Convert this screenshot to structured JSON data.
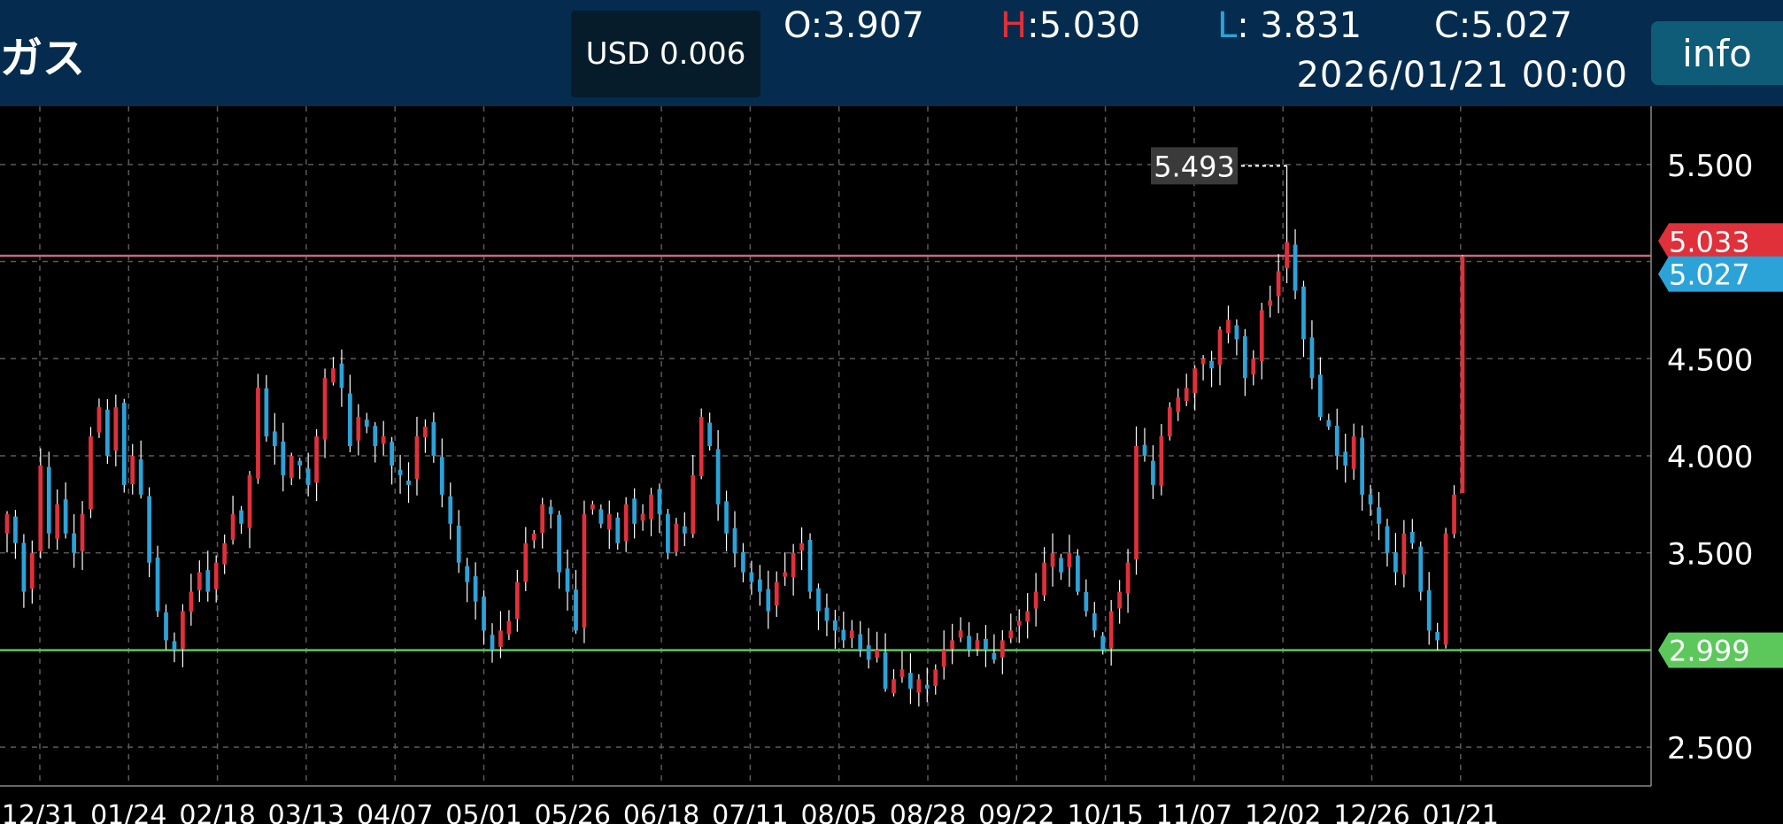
{
  "header": {
    "title": "ガス",
    "price_box": "USD 0.006",
    "ohlc": {
      "o_key": "O:",
      "o_val": "3.907",
      "h_key": "H",
      "h_colon": ":",
      "h_val": "5.030",
      "l_key": "L",
      "l_colon": ":",
      "l_val": "3.831",
      "c_key": "C:",
      "c_val": "5.027"
    },
    "datetime": "2026/01/21  00:00",
    "info_label": "info"
  },
  "colors": {
    "up": "#e0303a",
    "down": "#2ba3d9",
    "header_bg": "#052c4e",
    "info_bg": "#0f5c78",
    "h_key": "#e0303a",
    "l_key": "#2ba3d9",
    "support_line": "#5cc85c",
    "resistance_line": "#c36a80"
  },
  "chart_data": {
    "type": "candlestick",
    "ylim": [
      2.3,
      5.8
    ],
    "yticks": [
      "5.500",
      "4.500",
      "4.000",
      "3.500",
      "2.500"
    ],
    "xtick_labels": [
      "12/31",
      "01/24",
      "02/18",
      "03/13",
      "04/07",
      "05/01",
      "05/26",
      "06/18",
      "07/11",
      "08/05",
      "08/28",
      "09/22",
      "10/15",
      "11/07",
      "12/02",
      "12/26",
      "01/21"
    ],
    "max_marker": {
      "label": "5.493",
      "value": 5.493
    },
    "price_tags": [
      {
        "label": "5.033",
        "value": 5.033,
        "color": "#e0303a"
      },
      {
        "label": "5.027",
        "value": 5.027,
        "color": "#2ba3d9"
      },
      {
        "label": "2.999",
        "value": 2.999,
        "color": "#5cc85c"
      }
    ],
    "horizontal_lines": [
      {
        "value": 5.03,
        "color": "#c36a80"
      },
      {
        "value": 2.999,
        "color": "#5cc85c"
      }
    ],
    "closes": [
      3.7,
      3.55,
      3.3,
      3.5,
      3.95,
      3.6,
      3.75,
      3.6,
      3.5,
      3.7,
      4.1,
      4.25,
      4.0,
      4.25,
      3.85,
      4.0,
      3.8,
      3.45,
      3.2,
      3.05,
      3.0,
      3.2,
      3.3,
      3.4,
      3.3,
      3.45,
      3.55,
      3.7,
      3.65,
      3.9,
      4.35,
      4.1,
      4.05,
      3.9,
      4.0,
      3.95,
      3.85,
      4.1,
      4.4,
      4.45,
      4.35,
      4.05,
      4.2,
      4.15,
      4.05,
      4.1,
      3.95,
      3.9,
      3.85,
      4.1,
      4.15,
      4.0,
      3.8,
      3.65,
      3.45,
      3.35,
      3.25,
      3.1,
      3.0,
      3.1,
      3.15,
      3.35,
      3.55,
      3.6,
      3.75,
      3.7,
      3.4,
      3.3,
      3.1,
      3.7,
      3.75,
      3.65,
      3.7,
      3.55,
      3.75,
      3.65,
      3.7,
      3.8,
      3.7,
      3.5,
      3.65,
      3.6,
      3.9,
      4.2,
      4.05,
      3.75,
      3.6,
      3.5,
      3.4,
      3.35,
      3.3,
      3.2,
      3.35,
      3.4,
      3.5,
      3.55,
      3.3,
      3.2,
      3.15,
      3.1,
      3.05,
      3.1,
      3.0,
      2.95,
      3.0,
      2.8,
      2.85,
      2.9,
      2.8,
      2.85,
      2.8,
      2.9,
      3.0,
      3.05,
      3.1,
      3.0,
      3.05,
      3.0,
      2.95,
      3.05,
      3.1,
      3.15,
      3.2,
      3.3,
      3.45,
      3.5,
      3.4,
      3.5,
      3.3,
      3.2,
      3.1,
      3.0,
      3.2,
      3.3,
      3.45,
      4.05,
      4.0,
      3.85,
      4.1,
      4.25,
      4.3,
      4.35,
      4.45,
      4.5,
      4.45,
      4.65,
      4.7,
      4.6,
      4.4,
      4.5,
      4.75,
      4.8,
      4.95,
      5.1,
      4.85,
      4.6,
      4.4,
      4.2,
      4.15,
      4.0,
      3.95,
      4.1,
      3.8,
      3.75,
      3.65,
      3.5,
      3.4,
      3.6,
      3.55,
      3.3,
      3.1,
      3.05,
      3.6,
      3.8,
      5.027
    ]
  }
}
